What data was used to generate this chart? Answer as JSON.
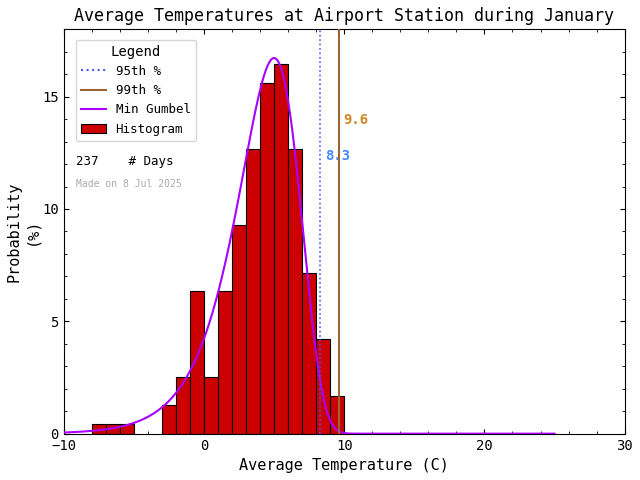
{
  "title": "Average Temperatures at Airport Station during January",
  "xlabel": "Average Temperature (C)",
  "ylabel": "Probability\n(%)",
  "xlim": [
    -10,
    30
  ],
  "ylim": [
    0,
    18
  ],
  "yticks": [
    0,
    5,
    10,
    15
  ],
  "xticks": [
    -10,
    0,
    10,
    20,
    30
  ],
  "bin_edges": [
    -8,
    -7,
    -6,
    -5,
    -4,
    -3,
    -2,
    -1,
    0,
    1,
    2,
    3,
    4,
    5,
    6,
    7,
    8,
    9,
    10
  ],
  "bin_heights": [
    0.42,
    0.42,
    0.42,
    0.0,
    0.0,
    1.27,
    2.53,
    6.33,
    2.53,
    6.33,
    9.28,
    12.66,
    15.61,
    16.46,
    12.66,
    7.17,
    4.22,
    1.69
  ],
  "hist_color": "#cc0000",
  "hist_edgecolor": "#000000",
  "gumbel_mu": 5.0,
  "gumbel_beta": 2.2,
  "curve_color": "#aa00ff",
  "pct95_value": 8.3,
  "pct99_value": 9.6,
  "pct95_color": "#5555ff",
  "pct99_color": "#996633",
  "label95_color": "#4488ff",
  "label99_color": "#cc8822",
  "n_days": 237,
  "watermark": "Made on 8 Jul 2025",
  "watermark_color": "#aaaaaa",
  "background_color": "#ffffff",
  "legend_title": "Legend"
}
